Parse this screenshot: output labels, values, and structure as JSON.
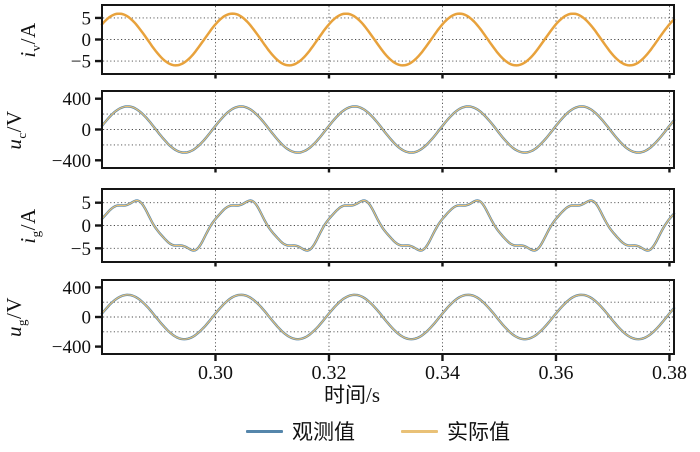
{
  "figure": {
    "background": "#ffffff"
  },
  "colors": {
    "observed_blue": "#5586ab",
    "actual_orange": "#e8a23c",
    "actual_orange_light": "#e9c177",
    "axis_black": "#151515",
    "grid_gray": "#4a4a4a",
    "text_black": "#111111"
  },
  "legend": {
    "items": [
      {
        "name": "observed",
        "label": "观测值"
      },
      {
        "name": "actual",
        "label": "实际值"
      }
    ]
  },
  "chart_data": {
    "type": "line",
    "title": "",
    "xlabel": "时间/s",
    "x_range": [
      0.28,
      0.3808
    ],
    "xticks": [
      0.3,
      0.32,
      0.34,
      0.36,
      0.38
    ],
    "xtick_labels": [
      "0.30",
      "0.32",
      "0.34",
      "0.36",
      "0.38"
    ],
    "grid": "dotted",
    "legend_position": "below",
    "fundamental_hz": 50,
    "series": [
      {
        "name": "观测值",
        "color_key": "observed_blue"
      },
      {
        "name": "实际值",
        "color_key": "actual_orange"
      }
    ],
    "note": "Observed and actual curves coincide in every subplot; signal components are amp*sin(2*pi*50*harmonic*t + phase_pi*pi)",
    "subplots": [
      {
        "ylabel_var": "i",
        "ylabel_sub": "v",
        "ylabel_unit": "/A",
        "ylim": [
          -8,
          8
        ],
        "yticks": [
          5,
          0,
          -5
        ],
        "ytick_labels": [
          "5",
          "0",
          "−5"
        ],
        "grid_y": [
          5,
          0,
          -5
        ],
        "amplitude": 6.0,
        "signal": [
          {
            "amp": 6.0,
            "harmonic": 1,
            "phase_pi": 0.2
          }
        ],
        "style": "actual_on_top"
      },
      {
        "ylabel_var": "u",
        "ylabel_sub": "c",
        "ylabel_unit": "/V",
        "ylim": [
          -500,
          500
        ],
        "yticks": [
          400,
          0,
          -400
        ],
        "ytick_labels": [
          "400",
          "0",
          "−400"
        ],
        "grid_y": [
          200,
          0,
          -200
        ],
        "amplitude": 300,
        "signal": [
          {
            "amp": 300,
            "harmonic": 1,
            "phase_pi": 0.05
          }
        ],
        "style": "overlap"
      },
      {
        "ylabel_var": "i",
        "ylabel_sub": "g",
        "ylabel_unit": "/A",
        "ylim": [
          -8,
          8
        ],
        "yticks": [
          5,
          0,
          -5
        ],
        "ytick_labels": [
          "5",
          "0",
          "−5"
        ],
        "grid_y": [
          5,
          0,
          -5
        ],
        "amplitude": 5.4,
        "signal": [
          {
            "amp": 5.4,
            "harmonic": 1,
            "phase_pi": 0.05
          },
          {
            "amp": 0.8,
            "harmonic": 3,
            "phase_pi": 0.4
          },
          {
            "amp": 0.3,
            "harmonic": 5,
            "phase_pi": 1.2
          }
        ],
        "style": "overlap"
      },
      {
        "ylabel_var": "u",
        "ylabel_sub": "g",
        "ylabel_unit": "/V",
        "ylim": [
          -500,
          500
        ],
        "yticks": [
          400,
          0,
          -400
        ],
        "ytick_labels": [
          "400",
          "0",
          "−400"
        ],
        "grid_y": [
          200,
          0,
          -200
        ],
        "amplitude": 300,
        "signal": [
          {
            "amp": 300,
            "harmonic": 1,
            "phase_pi": 0.05
          }
        ],
        "style": "overlap"
      }
    ]
  }
}
